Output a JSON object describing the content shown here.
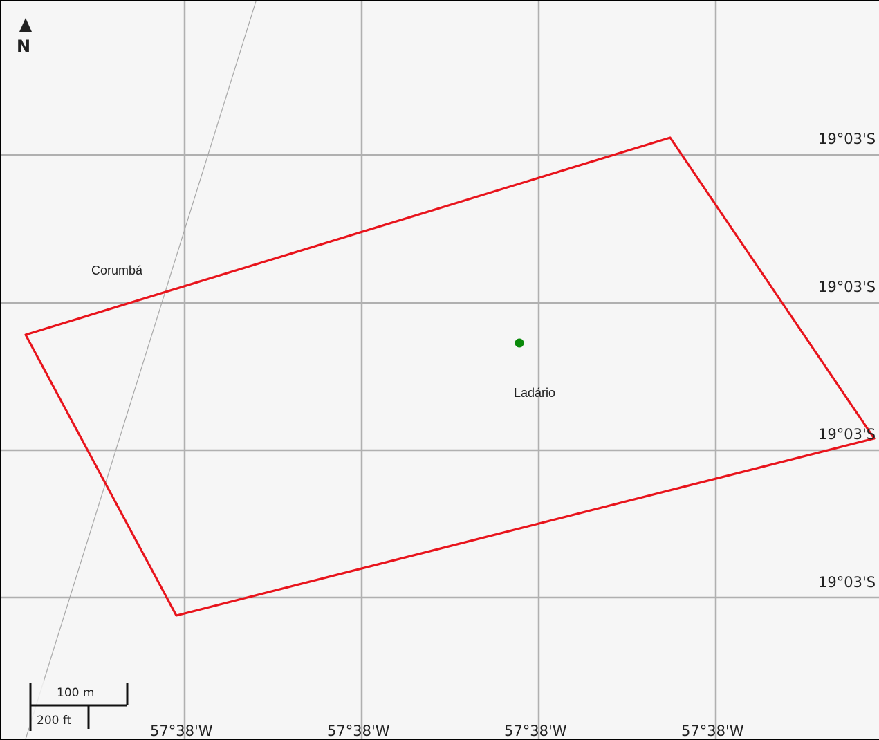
{
  "map": {
    "north_arrow": {
      "label": "N"
    },
    "grid": {
      "longitude_labels": [
        "57°38'W",
        "57°38'W",
        "57°38'W",
        "57°38'W"
      ],
      "latitude_labels": [
        "19°03'S",
        "19°03'S",
        "19°03'S",
        "19°03'S"
      ]
    },
    "places": [
      {
        "name": "Corumbá"
      },
      {
        "name": "Ladário"
      }
    ],
    "scale_bar": {
      "metric_label": "100 m",
      "imperial_label": "200 ft"
    },
    "colors": {
      "background": "#f6f6f6",
      "grid": "#b0b0b0",
      "boundary": "#e8141c",
      "marker": "#0a8a0a"
    }
  }
}
